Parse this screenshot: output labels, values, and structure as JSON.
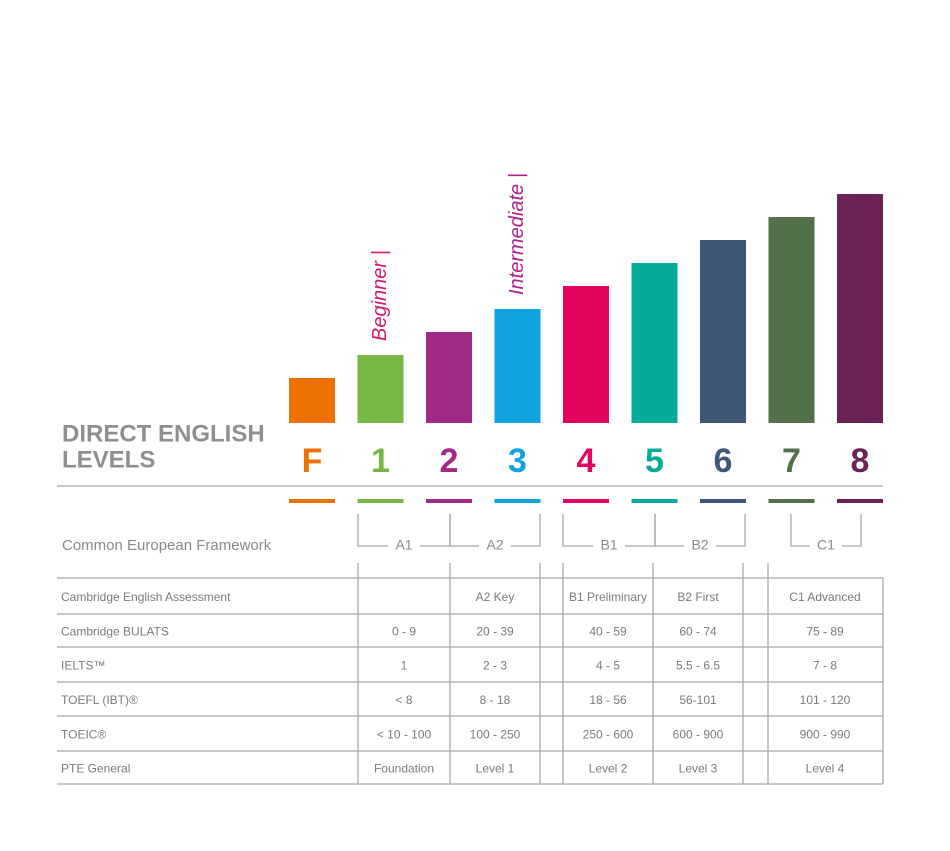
{
  "header": {
    "title_lines": [
      "DIRECT ENGLISH",
      "LEVELS"
    ]
  },
  "levels": [
    {
      "label": "F",
      "color": "#ee7203"
    },
    {
      "label": "1",
      "color": "#76b843"
    },
    {
      "label": "2",
      "color": "#a02a85"
    },
    {
      "label": "3",
      "color": "#0fa3e0"
    },
    {
      "label": "4",
      "color": "#e3045e"
    },
    {
      "label": "5",
      "color": "#07ab9c"
    },
    {
      "label": "6",
      "color": "#3f5777"
    },
    {
      "label": "7",
      "color": "#527049"
    },
    {
      "label": "8",
      "color": "#6b2356"
    }
  ],
  "annotations": [
    {
      "text": "Beginner |",
      "level": 1
    },
    {
      "text": "Intermediate |",
      "level": 3
    }
  ],
  "framework": {
    "label": "Common European Framework",
    "bands": [
      "A1",
      "A2",
      "B1",
      "B2",
      "C1"
    ]
  },
  "table": {
    "rows": [
      {
        "label": "Cambridge English Assessment",
        "cells": [
          null,
          "A2 Key",
          "B1 Preliminary",
          "B2 First",
          "C1 Advanced"
        ]
      },
      {
        "label": "Cambridge BULATS",
        "cells": [
          "0 - 9",
          "20 - 39",
          "40 - 59",
          "60 - 74",
          "75 - 89"
        ]
      },
      {
        "label": "IELTS™",
        "cells": [
          "1",
          "2 - 3",
          "4 - 5",
          "5.5 - 6.5",
          "7 - 8"
        ]
      },
      {
        "label": "TOEFL (IBT)®",
        "cells": [
          "< 8",
          "8 - 18",
          "18 - 56",
          "56-101",
          "101 - 120"
        ]
      },
      {
        "label": "TOEIC®",
        "cells": [
          "< 10 - 100",
          "100 - 250",
          "250 - 600",
          "600 - 900",
          "900 - 990"
        ]
      },
      {
        "label": "PTE General",
        "cells": [
          "Foundation",
          "Level 1",
          "Level 2",
          "Level 3",
          "Level 4"
        ]
      }
    ]
  }
}
